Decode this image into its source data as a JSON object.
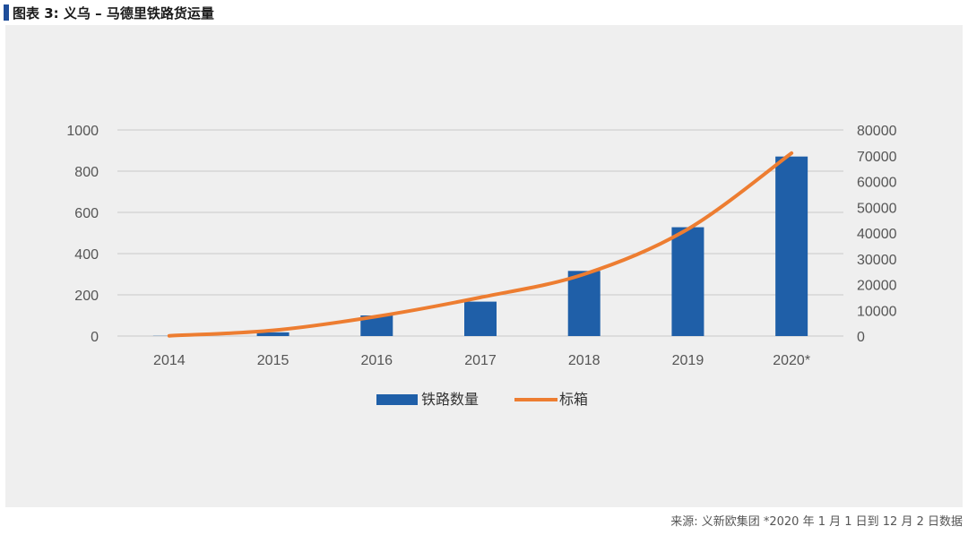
{
  "title": "图表 3: 义乌 – 马德里铁路货运量",
  "source": "来源: 义新欧集团  *2020 年 1 月 1 日到 12 月 2 日数据",
  "colors": {
    "bar": "#1f5fa8",
    "line": "#ed7d31",
    "grid": "#c8c8c8",
    "axis_text": "#555555",
    "title_marker": "#1f4e9a"
  },
  "chart_data": {
    "type": "bar+line",
    "categories": [
      "2014",
      "2015",
      "2016",
      "2017",
      "2018",
      "2019",
      "2020*"
    ],
    "series": [
      {
        "name": "铁路数量",
        "type": "bar",
        "axis": "left",
        "values": [
          1,
          18,
          100,
          167,
          316,
          528,
          871
        ]
      },
      {
        "name": "标箱",
        "type": "line",
        "axis": "right",
        "values": [
          100,
          2200,
          7600,
          15000,
          24000,
          41500,
          71000
        ]
      }
    ],
    "left_axis": {
      "min": 0,
      "max": 1000,
      "ticks": [
        "0",
        "200",
        "400",
        "600",
        "800",
        "1000"
      ]
    },
    "right_axis": {
      "min": 0,
      "max": 80000,
      "ticks": [
        "0",
        "10000",
        "20000",
        "30000",
        "40000",
        "50000",
        "60000",
        "70000",
        "80000"
      ]
    },
    "legend": {
      "position": "bottom-center",
      "items": [
        "铁路数量",
        "标箱"
      ]
    }
  }
}
